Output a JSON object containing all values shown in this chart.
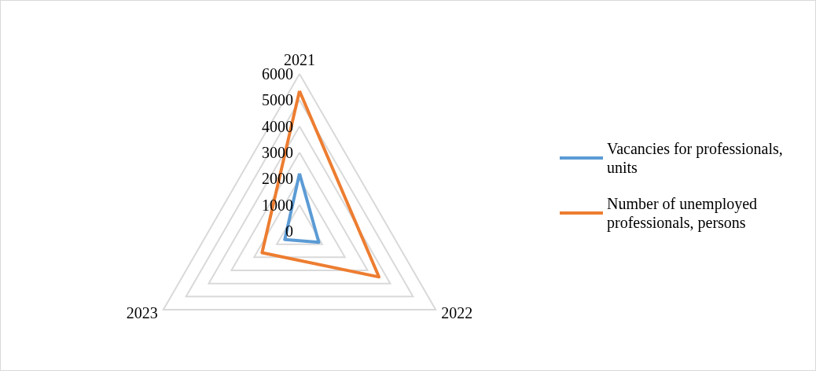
{
  "chart_data": {
    "type": "radar",
    "categories": [
      "2021",
      "2022",
      "2023"
    ],
    "series": [
      {
        "name": "Vacancies for professionals, units",
        "color": "#5b9bd5",
        "values": [
          2200,
          850,
          650
        ]
      },
      {
        "name": "Number of unemployed professionals, persons",
        "color": "#ed7d31",
        "values": [
          5350,
          3500,
          1650
        ]
      }
    ],
    "ylim": [
      0,
      6000
    ],
    "yticks": [
      0,
      1000,
      2000,
      3000,
      4000,
      5000,
      6000
    ],
    "grid": true,
    "legend": "right",
    "marker": "none"
  }
}
